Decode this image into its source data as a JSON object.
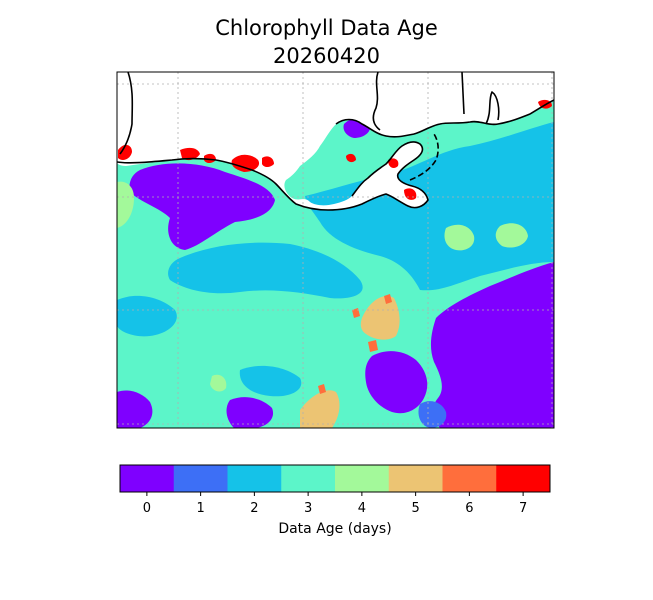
{
  "title": "Chlorophyll Data Age",
  "date": "20260420",
  "colorbar": {
    "label": "Data Age (days)",
    "ticks": [
      "0",
      "1",
      "2",
      "3",
      "4",
      "5",
      "6",
      "7"
    ],
    "colors": [
      "#7f00ff",
      "#3d6ff6",
      "#15c2e8",
      "#5cf5c9",
      "#a3f99a",
      "#ecc473",
      "#ff6e3c",
      "#ff0000"
    ]
  },
  "map_colors": {
    "land": "#ffffff",
    "coastline": "#000000",
    "gridline": "#b0b0b0"
  }
}
